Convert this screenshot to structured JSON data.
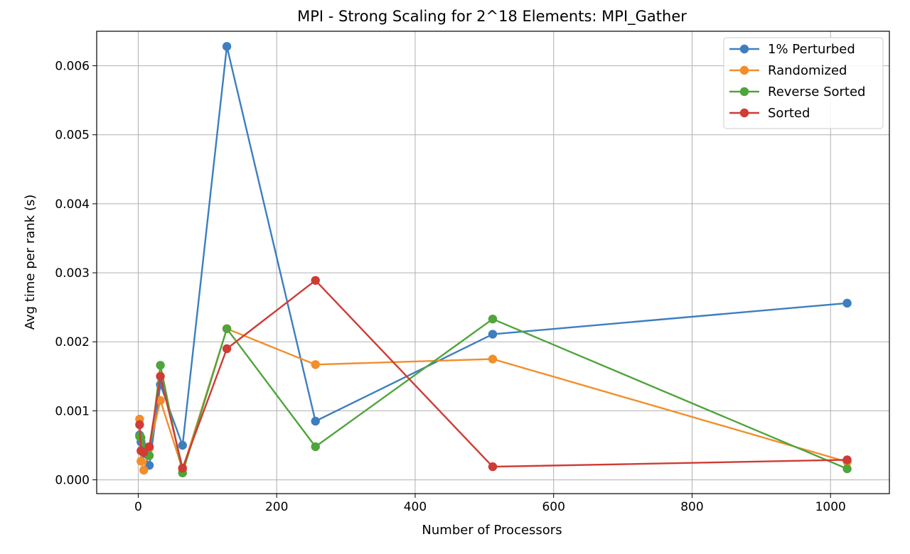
{
  "chart_data": {
    "type": "line",
    "title": "MPI - Strong Scaling for 2^18 Elements: MPI_Gather",
    "xlabel": "Number of Processors",
    "ylabel": "Avg time per rank (s)",
    "xlim": [
      -60,
      1085
    ],
    "ylim": [
      -0.0002,
      0.0065
    ],
    "xticks": [
      0,
      200,
      400,
      600,
      800,
      1000
    ],
    "xtick_labels": [
      "0",
      "200",
      "400",
      "600",
      "800",
      "1000"
    ],
    "yticks": [
      0,
      0.001,
      0.002,
      0.003,
      0.004,
      0.005,
      0.006
    ],
    "ytick_labels": [
      "0.000",
      "0.001",
      "0.002",
      "0.003",
      "0.004",
      "0.005",
      "0.006"
    ],
    "grid": true,
    "legend_position": "top-right",
    "x": [
      2,
      4,
      8,
      16,
      32,
      64,
      128,
      256,
      512,
      1024
    ],
    "series": [
      {
        "name": "1% Perturbed",
        "color": "#3d7ebf",
        "values": [
          0.00065,
          0.00055,
          0.00038,
          0.00021,
          0.00138,
          0.0005,
          0.00628,
          0.00085,
          0.00211,
          0.00256
        ]
      },
      {
        "name": "Randomized",
        "color": "#f28e2b",
        "values": [
          0.00088,
          0.00027,
          0.00014,
          0.00046,
          0.00115,
          0.00015,
          0.00219,
          0.00167,
          0.00175,
          0.00026
        ]
      },
      {
        "name": "Reverse Sorted",
        "color": "#4fa43b",
        "values": [
          0.00063,
          0.00061,
          0.00048,
          0.00035,
          0.00166,
          0.0001,
          0.00219,
          0.00048,
          0.00233,
          0.00016
        ]
      },
      {
        "name": "Sorted",
        "color": "#cf3b35",
        "values": [
          0.0008,
          0.00042,
          0.0004,
          0.00048,
          0.0015,
          0.00017,
          0.0019,
          0.00289,
          0.00019,
          0.00029
        ]
      }
    ]
  }
}
